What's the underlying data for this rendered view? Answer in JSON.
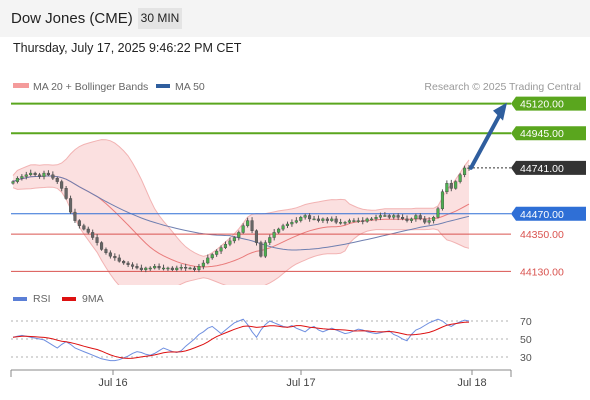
{
  "header": {
    "title": "Dow Jones (CME)",
    "timeframe": "30 MIN"
  },
  "timestamp": "Thursday, July 17, 2025 9:46:22 PM CET",
  "legend": {
    "ma20": "MA 20 + Bollinger Bands",
    "ma50": "MA 50",
    "credit": "Research © 2025 Trading Central"
  },
  "rsi_legend": {
    "rsi": "RSI",
    "ma9": "9MA"
  },
  "colors": {
    "up": "#4caf50",
    "down": "#666666",
    "resistance": "#5aa61e",
    "support": "#d9534f",
    "pivot": "#2f6fd6",
    "arrow": "#2f5e9e",
    "band": "#f9d6d6",
    "ma20": "#e97b7b",
    "ma50": "#6f7fb0",
    "current": "#333333"
  },
  "chart_data": [
    {
      "type": "candlestick",
      "x_ticks": [
        "Jul 16",
        "Jul 17",
        "Jul 18"
      ],
      "ylim": [
        44050,
        45200
      ],
      "levels": [
        {
          "label": "45120.00",
          "value": 45120,
          "kind": "resistance"
        },
        {
          "label": "44945.00",
          "value": 44945,
          "kind": "resistance"
        },
        {
          "label": "44741.00",
          "value": 44741,
          "kind": "current"
        },
        {
          "label": "44470.00",
          "value": 44470,
          "kind": "pivot"
        },
        {
          "label": "44350.00",
          "value": 44350,
          "kind": "support"
        },
        {
          "label": "44130.00",
          "value": 44130,
          "kind": "support"
        }
      ],
      "close": [
        44660,
        44680,
        44690,
        44700,
        44710,
        44700,
        44690,
        44710,
        44700,
        44680,
        44660,
        44620,
        44560,
        44480,
        44430,
        44400,
        44380,
        44360,
        44330,
        44300,
        44260,
        44240,
        44220,
        44210,
        44190,
        44180,
        44170,
        44160,
        44150,
        44140,
        44150,
        44150,
        44160,
        44150,
        44150,
        44150,
        44140,
        44150,
        44155,
        44150,
        44150,
        44140,
        44160,
        44180,
        44210,
        44230,
        44250,
        44270,
        44290,
        44310,
        44330,
        44360,
        44400,
        44430,
        44370,
        44300,
        44220,
        44300,
        44330,
        44360,
        44380,
        44400,
        44410,
        44420,
        44430,
        44450,
        44460,
        44440,
        44440,
        44430,
        44440,
        44430,
        44440,
        44420,
        44420,
        44420,
        44430,
        44430,
        44430,
        44425,
        44440,
        44440,
        44450,
        44460,
        44460,
        44450,
        44460,
        44450,
        44440,
        44430,
        44440,
        44460,
        44440,
        44420,
        44430,
        44450,
        44500,
        44600,
        44650,
        44620,
        44660,
        44700,
        44740,
        44741
      ],
      "rsi": [
        52,
        53,
        54,
        53,
        52,
        51,
        50,
        49,
        46,
        43,
        40,
        44,
        47,
        44,
        40,
        38,
        36,
        34,
        32,
        30,
        28,
        27,
        26,
        26,
        27,
        29,
        31,
        34,
        36,
        35,
        33,
        32,
        34,
        37,
        40,
        38,
        36,
        35,
        37,
        42,
        46,
        50,
        55,
        58,
        62,
        64,
        60,
        56,
        60,
        64,
        68,
        70,
        72,
        66,
        58,
        52,
        60,
        66,
        70,
        68,
        66,
        64,
        63,
        65,
        62,
        60,
        58,
        62,
        64,
        60,
        58,
        60,
        62,
        60,
        58,
        56,
        57,
        59,
        61,
        60,
        58,
        57,
        56,
        57,
        58,
        59,
        55,
        53,
        50,
        48,
        55,
        60,
        62,
        65,
        68,
        70,
        72,
        70,
        66,
        64,
        67,
        69,
        71,
        70
      ],
      "rsi_ylim": [
        20,
        80
      ],
      "rsi_ticks": [
        70,
        50,
        30
      ]
    }
  ]
}
